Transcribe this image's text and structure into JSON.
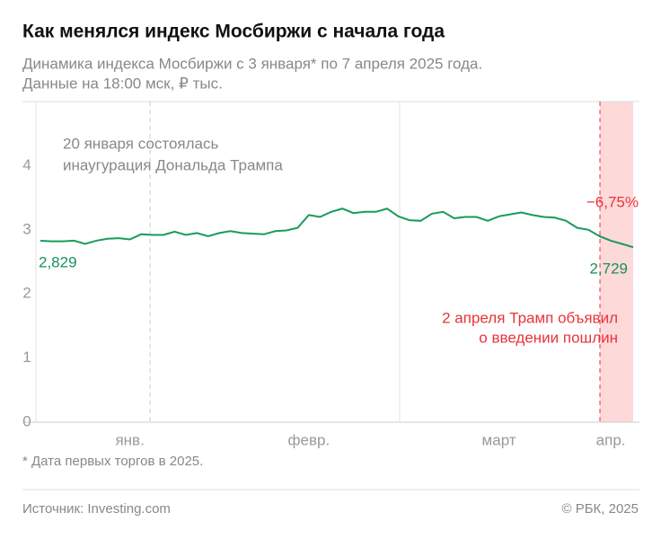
{
  "chart_data": {
    "type": "line",
    "title": "Как менялся индекс Мосбиржи с начала года",
    "subtitle": [
      "Динамика индекса Мосбиржи с 3 января* по 7 апреля 2025 года.",
      "Данные на 18:00 мск, ₽ тыс."
    ],
    "annotations": [
      [
        "20 января состоялась",
        "инаугурация Дональда Трампа"
      ],
      "−6,75%",
      [
        "2 апреля Трамп объявил",
        "о введении пошлин"
      ]
    ],
    "footnote": "* Дата первых торгов в 2025.",
    "source": "Источник: Investing.com",
    "copyright": "© РБК, 2025",
    "categories": [
      null,
      null,
      null,
      null,
      null,
      null,
      null,
      null,
      "янв.",
      null,
      null,
      null,
      null,
      null,
      null,
      null,
      null,
      null,
      null,
      null,
      null,
      null,
      null,
      null,
      "февр.",
      null,
      null,
      null,
      null,
      null,
      null,
      null,
      null,
      null,
      null,
      null,
      null,
      null,
      null,
      null,
      null,
      "март",
      null,
      null,
      null,
      null,
      null,
      null,
      null,
      null,
      null,
      "апр.",
      null,
      null
    ],
    "values": [
      2.829,
      2.82,
      2.82,
      2.83,
      2.78,
      2.83,
      2.86,
      2.87,
      2.85,
      2.93,
      2.92,
      2.92,
      2.97,
      2.92,
      2.95,
      2.9,
      2.95,
      2.98,
      2.95,
      2.94,
      2.93,
      2.98,
      2.99,
      3.03,
      3.23,
      3.2,
      3.28,
      3.33,
      3.26,
      3.28,
      3.28,
      3.33,
      3.21,
      3.15,
      3.14,
      3.25,
      3.28,
      3.18,
      3.2,
      3.2,
      3.14,
      3.21,
      3.24,
      3.27,
      3.23,
      3.2,
      3.19,
      3.14,
      3.03,
      3.0,
      2.9,
      2.83,
      2.78,
      2.729
    ],
    "value_labels": [
      "2,829",
      null,
      null,
      null,
      null,
      null,
      null,
      null,
      null,
      null,
      null,
      null,
      null,
      null,
      null,
      null,
      null,
      null,
      null,
      null,
      null,
      null,
      null,
      null,
      null,
      null,
      null,
      null,
      null,
      null,
      null,
      null,
      null,
      null,
      null,
      null,
      null,
      null,
      null,
      null,
      null,
      null,
      null,
      null,
      null,
      null,
      null,
      null,
      null,
      null,
      null,
      null,
      null,
      "2,729"
    ],
    "color": "#1a9a5c",
    "ylim": [
      0,
      5
    ],
    "yticks": [
      0,
      1,
      2,
      3,
      4
    ]
  }
}
